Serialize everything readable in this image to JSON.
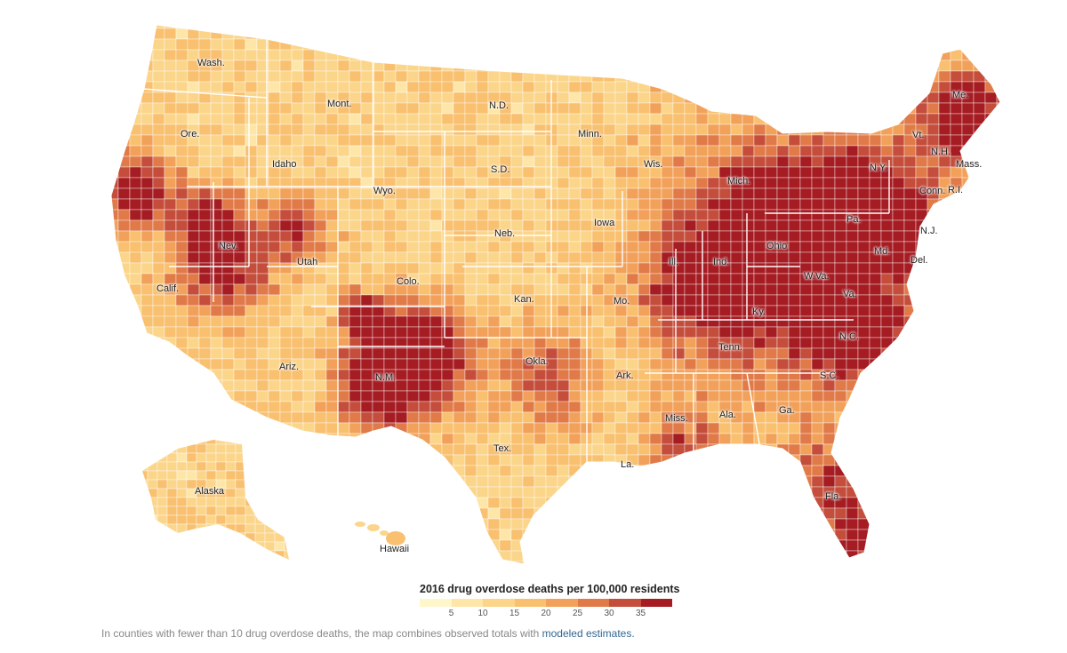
{
  "state_labels": [
    "Wash.",
    "Mont.",
    "N.D.",
    "Ore.",
    "Minn.",
    "Idaho",
    "Wyo.",
    "S.D.",
    "Wis.",
    "Mich.",
    "Nev.",
    "Neb.",
    "Iowa",
    "Utah",
    "Calif.",
    "Colo.",
    "Kan.",
    "Mo.",
    "Ill.",
    "Ind.",
    "Ohio",
    "Pa.",
    "N.Y.",
    "Vt.",
    "N.H.",
    "Me.",
    "Mass.",
    "Conn.",
    "R.I.",
    "N.J.",
    "Md.",
    "Del.",
    "W.Va.",
    "Va.",
    "Ky.",
    "Tenn.",
    "N.C.",
    "S.C.",
    "Okla.",
    "Ark.",
    "Ariz.",
    "N.M.",
    "Tex.",
    "La.",
    "Miss.",
    "Ala.",
    "Ga.",
    "Fla.",
    "Alaska",
    "Hawaii"
  ],
  "legend": {
    "title": "2016 drug overdose deaths per 100,000 residents",
    "ticks": [
      "5",
      "10",
      "15",
      "20",
      "25",
      "30",
      "35"
    ],
    "colors": [
      "#fff7cc",
      "#fde6a8",
      "#fbd58a",
      "#f8c06f",
      "#f2a15a",
      "#e07a48",
      "#c44d3b",
      "#a51c22"
    ]
  },
  "footnote": {
    "text": "In counties with fewer than 10 drug overdose deaths, the map combines observed totals with",
    "link": "modeled estimates."
  },
  "colors": {
    "background": "#ffffff",
    "county_border": "#ffffff",
    "label_text": "#222222",
    "link": "#326891"
  }
}
